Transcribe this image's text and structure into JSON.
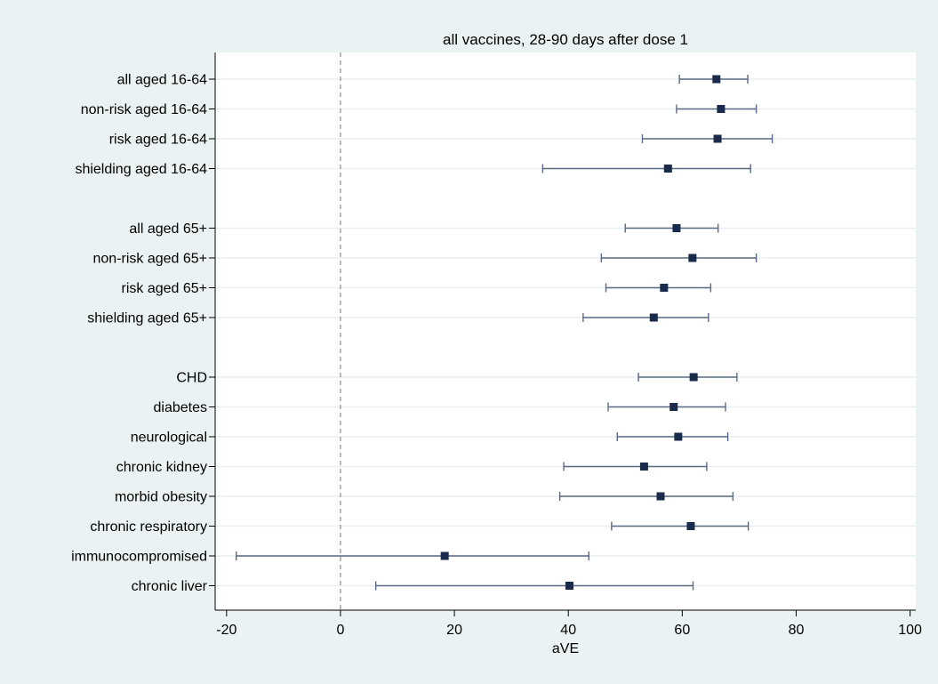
{
  "chart_data": {
    "type": "forest",
    "title": "all vaccines, 28-90 days after dose 1",
    "xlabel": "aVE",
    "ylabel": "",
    "xlim": [
      -22,
      101
    ],
    "xticks": [
      -20,
      0,
      20,
      40,
      60,
      80,
      100
    ],
    "reference_line": 0,
    "grid": "horizontal",
    "colors": {
      "background": "#eaf2f3",
      "plot_area": "#ffffff",
      "grid": "#e7eff1",
      "ci_line": "#5a6a84",
      "point": "#1a2a4a",
      "reference_line": "#8c8c8c"
    },
    "rows": [
      {
        "label": "all aged 16-64",
        "estimate": 66.0,
        "lower": 59.5,
        "upper": 71.5
      },
      {
        "label": "non-risk aged 16-64",
        "estimate": 66.8,
        "lower": 59.0,
        "upper": 73.0
      },
      {
        "label": "risk aged 16-64",
        "estimate": 66.2,
        "lower": 53.0,
        "upper": 75.8
      },
      {
        "label": "shielding aged 16-64",
        "estimate": 57.5,
        "lower": 35.5,
        "upper": 72.0
      },
      {
        "label": "",
        "spacer": true
      },
      {
        "label": "all aged 65+",
        "estimate": 59.0,
        "lower": 50.0,
        "upper": 66.3
      },
      {
        "label": "non-risk aged 65+",
        "estimate": 61.8,
        "lower": 45.8,
        "upper": 73.0
      },
      {
        "label": "risk aged 65+",
        "estimate": 56.8,
        "lower": 46.6,
        "upper": 65.0
      },
      {
        "label": "shielding aged 65+",
        "estimate": 55.0,
        "lower": 42.6,
        "upper": 64.6
      },
      {
        "label": "",
        "spacer": true
      },
      {
        "label": "CHD",
        "estimate": 62.0,
        "lower": 52.3,
        "upper": 69.6
      },
      {
        "label": "diabetes",
        "estimate": 58.5,
        "lower": 47.0,
        "upper": 67.6
      },
      {
        "label": "neurological",
        "estimate": 59.3,
        "lower": 48.6,
        "upper": 68.0
      },
      {
        "label": "chronic kidney",
        "estimate": 53.3,
        "lower": 39.2,
        "upper": 64.3
      },
      {
        "label": "morbid obesity",
        "estimate": 56.2,
        "lower": 38.5,
        "upper": 68.9
      },
      {
        "label": "chronic respiratory",
        "estimate": 61.5,
        "lower": 47.6,
        "upper": 71.6
      },
      {
        "label": "immunocompromised",
        "estimate": 18.3,
        "lower": -18.3,
        "upper": 43.6
      },
      {
        "label": "chronic liver",
        "estimate": 40.2,
        "lower": 6.2,
        "upper": 61.9
      }
    ]
  }
}
